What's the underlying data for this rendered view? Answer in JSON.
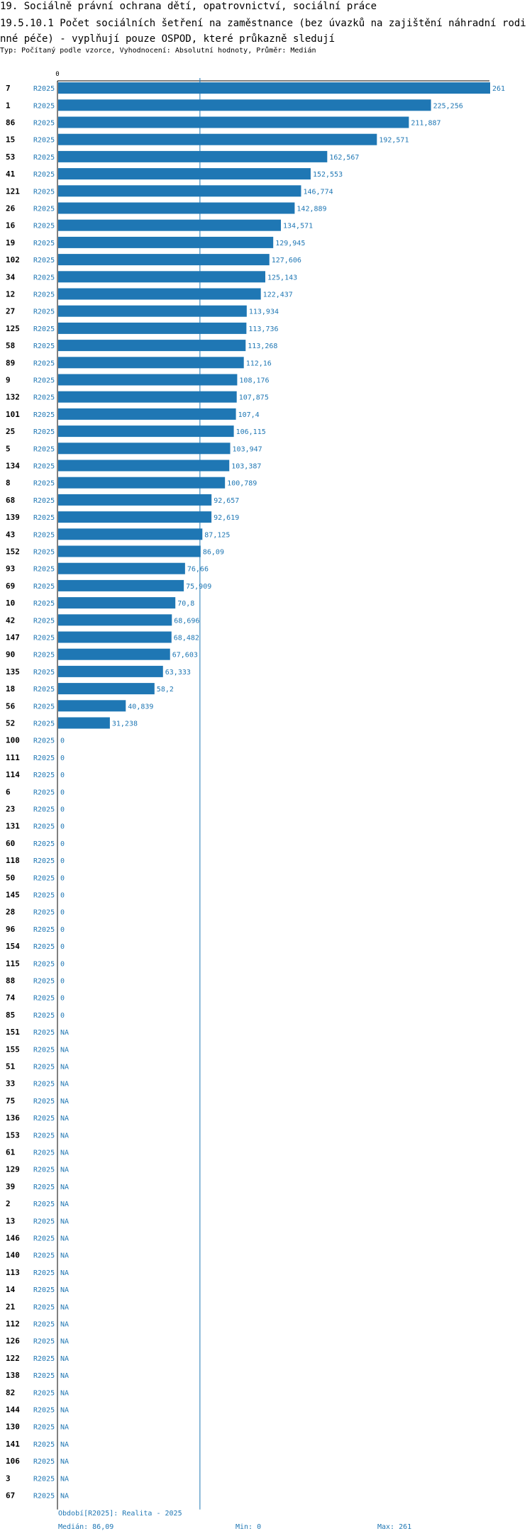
{
  "header": {
    "title": "19. Sociálně právní ochrana dětí, opatrovnictví, sociální práce",
    "indicator": "19.5.10.1 Počet sociálních šetření na zaměstnance (bez úvazků na zajištění náhradní rodinné péče) - vyplňují pouze OSPOD, které průkazně sledují",
    "subtitle": "Typ: Počítaný podle vzorce, Vyhodnocení: Absolutní hodnoty, Průměr: Medián"
  },
  "chart_data": {
    "type": "bar",
    "orientation": "horizontal",
    "series_name": "R2025",
    "x_tick_label": "0",
    "xlim": [
      0,
      261
    ],
    "median": 86.09,
    "colors": {
      "bar": "#1f77b4",
      "median_line": "#1f77b4",
      "text": "#1f77b4"
    },
    "rows": [
      {
        "id": "7",
        "value": 261,
        "label": "261"
      },
      {
        "id": "1",
        "value": 225.256,
        "label": "225,256"
      },
      {
        "id": "86",
        "value": 211.887,
        "label": "211,887"
      },
      {
        "id": "15",
        "value": 192.571,
        "label": "192,571"
      },
      {
        "id": "53",
        "value": 162.567,
        "label": "162,567"
      },
      {
        "id": "41",
        "value": 152.553,
        "label": "152,553"
      },
      {
        "id": "121",
        "value": 146.774,
        "label": "146,774"
      },
      {
        "id": "26",
        "value": 142.889,
        "label": "142,889"
      },
      {
        "id": "16",
        "value": 134.571,
        "label": "134,571"
      },
      {
        "id": "19",
        "value": 129.945,
        "label": "129,945"
      },
      {
        "id": "102",
        "value": 127.606,
        "label": "127,606"
      },
      {
        "id": "34",
        "value": 125.143,
        "label": "125,143"
      },
      {
        "id": "12",
        "value": 122.437,
        "label": "122,437"
      },
      {
        "id": "27",
        "value": 113.934,
        "label": "113,934"
      },
      {
        "id": "125",
        "value": 113.736,
        "label": "113,736"
      },
      {
        "id": "58",
        "value": 113.268,
        "label": "113,268"
      },
      {
        "id": "89",
        "value": 112.16,
        "label": "112,16"
      },
      {
        "id": "9",
        "value": 108.176,
        "label": "108,176"
      },
      {
        "id": "132",
        "value": 107.875,
        "label": "107,875"
      },
      {
        "id": "101",
        "value": 107.4,
        "label": "107,4"
      },
      {
        "id": "25",
        "value": 106.115,
        "label": "106,115"
      },
      {
        "id": "5",
        "value": 103.947,
        "label": "103,947"
      },
      {
        "id": "134",
        "value": 103.387,
        "label": "103,387"
      },
      {
        "id": "8",
        "value": 100.789,
        "label": "100,789"
      },
      {
        "id": "68",
        "value": 92.657,
        "label": "92,657"
      },
      {
        "id": "139",
        "value": 92.619,
        "label": "92,619"
      },
      {
        "id": "43",
        "value": 87.125,
        "label": "87,125"
      },
      {
        "id": "152",
        "value": 86.09,
        "label": "86,09"
      },
      {
        "id": "93",
        "value": 76.66,
        "label": "76,66"
      },
      {
        "id": "69",
        "value": 75.909,
        "label": "75,909"
      },
      {
        "id": "10",
        "value": 70.8,
        "label": "70,8"
      },
      {
        "id": "42",
        "value": 68.696,
        "label": "68,696"
      },
      {
        "id": "147",
        "value": 68.482,
        "label": "68,482"
      },
      {
        "id": "90",
        "value": 67.603,
        "label": "67,603"
      },
      {
        "id": "135",
        "value": 63.333,
        "label": "63,333"
      },
      {
        "id": "18",
        "value": 58.2,
        "label": "58,2"
      },
      {
        "id": "56",
        "value": 40.839,
        "label": "40,839"
      },
      {
        "id": "52",
        "value": 31.238,
        "label": "31,238"
      },
      {
        "id": "100",
        "value": 0,
        "label": "0"
      },
      {
        "id": "111",
        "value": 0,
        "label": "0"
      },
      {
        "id": "114",
        "value": 0,
        "label": "0"
      },
      {
        "id": "6",
        "value": 0,
        "label": "0"
      },
      {
        "id": "23",
        "value": 0,
        "label": "0"
      },
      {
        "id": "131",
        "value": 0,
        "label": "0"
      },
      {
        "id": "60",
        "value": 0,
        "label": "0"
      },
      {
        "id": "118",
        "value": 0,
        "label": "0"
      },
      {
        "id": "50",
        "value": 0,
        "label": "0"
      },
      {
        "id": "145",
        "value": 0,
        "label": "0"
      },
      {
        "id": "28",
        "value": 0,
        "label": "0"
      },
      {
        "id": "96",
        "value": 0,
        "label": "0"
      },
      {
        "id": "154",
        "value": 0,
        "label": "0"
      },
      {
        "id": "115",
        "value": 0,
        "label": "0"
      },
      {
        "id": "88",
        "value": 0,
        "label": "0"
      },
      {
        "id": "74",
        "value": 0,
        "label": "0"
      },
      {
        "id": "85",
        "value": 0,
        "label": "0"
      },
      {
        "id": "151",
        "value": null,
        "label": "NA"
      },
      {
        "id": "155",
        "value": null,
        "label": "NA"
      },
      {
        "id": "51",
        "value": null,
        "label": "NA"
      },
      {
        "id": "33",
        "value": null,
        "label": "NA"
      },
      {
        "id": "75",
        "value": null,
        "label": "NA"
      },
      {
        "id": "136",
        "value": null,
        "label": "NA"
      },
      {
        "id": "153",
        "value": null,
        "label": "NA"
      },
      {
        "id": "61",
        "value": null,
        "label": "NA"
      },
      {
        "id": "129",
        "value": null,
        "label": "NA"
      },
      {
        "id": "39",
        "value": null,
        "label": "NA"
      },
      {
        "id": "2",
        "value": null,
        "label": "NA"
      },
      {
        "id": "13",
        "value": null,
        "label": "NA"
      },
      {
        "id": "146",
        "value": null,
        "label": "NA"
      },
      {
        "id": "140",
        "value": null,
        "label": "NA"
      },
      {
        "id": "113",
        "value": null,
        "label": "NA"
      },
      {
        "id": "14",
        "value": null,
        "label": "NA"
      },
      {
        "id": "21",
        "value": null,
        "label": "NA"
      },
      {
        "id": "112",
        "value": null,
        "label": "NA"
      },
      {
        "id": "126",
        "value": null,
        "label": "NA"
      },
      {
        "id": "122",
        "value": null,
        "label": "NA"
      },
      {
        "id": "138",
        "value": null,
        "label": "NA"
      },
      {
        "id": "82",
        "value": null,
        "label": "NA"
      },
      {
        "id": "144",
        "value": null,
        "label": "NA"
      },
      {
        "id": "130",
        "value": null,
        "label": "NA"
      },
      {
        "id": "141",
        "value": null,
        "label": "NA"
      },
      {
        "id": "106",
        "value": null,
        "label": "NA"
      },
      {
        "id": "3",
        "value": null,
        "label": "NA"
      },
      {
        "id": "67",
        "value": null,
        "label": "NA"
      }
    ]
  },
  "footer": {
    "period": "Období[R2025]: Realita - 2025",
    "median": "Medián: 86,09",
    "min": "Min: 0",
    "max": "Max: 261"
  }
}
